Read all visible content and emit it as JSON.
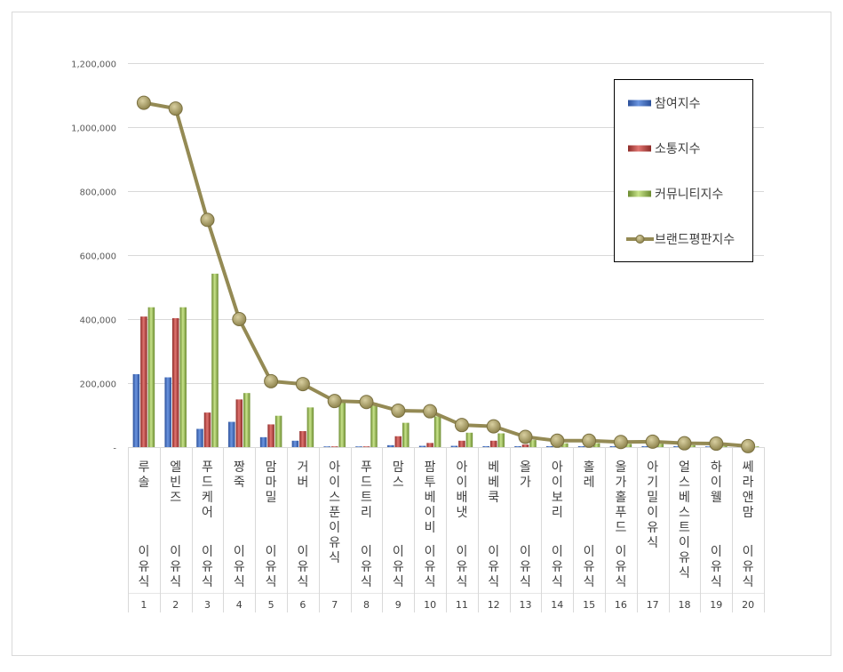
{
  "chart_data": {
    "type": "bar",
    "title": "",
    "xlabel": "",
    "ylabel": "",
    "ylim": [
      0,
      1200000
    ],
    "yticks": [
      0,
      200000,
      400000,
      600000,
      800000,
      1000000,
      1200000
    ],
    "ytick_labels": [
      "-",
      "200,000",
      "400,000",
      "600,000",
      "800,000",
      "1,000,000",
      "1,200,000"
    ],
    "grid": true,
    "legend_position": "top-right",
    "categories": [
      "루솔",
      "엘빈즈",
      "푸드케어",
      "짱죽",
      "맘마밀",
      "거버",
      "아이스푼",
      "푸드트리",
      "맘스",
      "팜투베이비",
      "아이배냇",
      "베베쿡",
      "올가",
      "아이보리",
      "홀레",
      "올가홀푸드",
      "아기밀",
      "얼스베스트",
      "하이웰",
      "쎄라앤맘"
    ],
    "category_group": [
      "이유식",
      "이유식",
      "이유식",
      "이유식",
      "이유식",
      "이유식",
      "",
      "이유식",
      "이유식",
      "이유식",
      "이유식",
      "이유식",
      "이유식",
      "이유식",
      "이유식",
      "이유식",
      "",
      "",
      "이유식",
      "이유식"
    ],
    "category_sublabel": [
      "",
      "",
      "",
      "",
      "",
      "",
      "이유식",
      "",
      "",
      "",
      "",
      "",
      "",
      "",
      "",
      "",
      "이유식",
      "이유식",
      "",
      ""
    ],
    "ranks": [
      "1",
      "2",
      "3",
      "4",
      "5",
      "6",
      "7",
      "8",
      "9",
      "10",
      "11",
      "12",
      "13",
      "14",
      "15",
      "16",
      "17",
      "18",
      "19",
      "20"
    ],
    "series": [
      {
        "name": "참여지수",
        "type": "bar",
        "color": "#4472c4",
        "values": [
          228000,
          218000,
          57000,
          79000,
          31000,
          20000,
          1500,
          2000,
          6000,
          4000,
          4000,
          3000,
          3000,
          3000,
          3000,
          3000,
          3000,
          3000,
          2000,
          2000
        ]
      },
      {
        "name": "소통지수",
        "type": "bar",
        "color": "#c0504d",
        "values": [
          408000,
          403000,
          108000,
          149000,
          71000,
          50000,
          2000,
          2000,
          34000,
          13000,
          20000,
          20000,
          8000,
          5000,
          5000,
          3000,
          4000,
          3000,
          3000,
          2000
        ]
      },
      {
        "name": "커뮤니티지수",
        "type": "bar",
        "color": "#9bbb59",
        "values": [
          437000,
          437000,
          542000,
          169000,
          98000,
          124000,
          143000,
          138000,
          76000,
          96000,
          45000,
          43000,
          22000,
          12000,
          12000,
          10000,
          10000,
          6000,
          6000,
          2000
        ]
      },
      {
        "name": "브랜드평판지수",
        "type": "line",
        "color": "#948a54",
        "values": [
          1076000,
          1058000,
          710000,
          400000,
          206000,
          197000,
          144000,
          141000,
          114000,
          112000,
          69000,
          65000,
          32000,
          20000,
          20000,
          16000,
          17000,
          12000,
          11000,
          3000
        ]
      }
    ]
  }
}
